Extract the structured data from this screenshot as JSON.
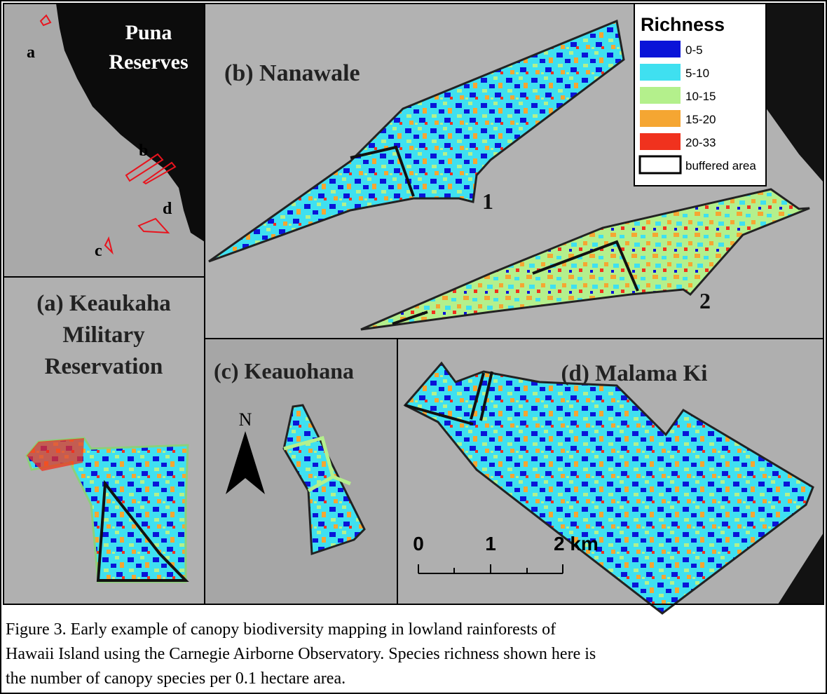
{
  "inset": {
    "title": [
      "Puna",
      "Reserves"
    ],
    "site_labels": [
      "a",
      "b",
      "c",
      "d"
    ]
  },
  "panel_b": {
    "title": "(b) Nanawale",
    "unit_labels": [
      "1",
      "2"
    ]
  },
  "panel_a": {
    "title": [
      "(a) Keaukaha",
      "Military",
      "Reservation"
    ]
  },
  "panel_c": {
    "title": "(c) Keauohana",
    "north": "N"
  },
  "panel_d": {
    "title": "(d) Malama Ki",
    "scale_labels": [
      "0",
      "1",
      "2 km"
    ]
  },
  "legend": {
    "title": "Richness",
    "items": [
      {
        "label": "0-5",
        "color": "#0a14d8"
      },
      {
        "label": "5-10",
        "color": "#3fe0f0"
      },
      {
        "label": "10-15",
        "color": "#b4f08c"
      },
      {
        "label": "15-20",
        "color": "#f5a632"
      },
      {
        "label": "20-33",
        "color": "#f0321e"
      },
      {
        "label": "buffered area",
        "color": "#ffffff"
      }
    ]
  },
  "caption": [
    "Figure 3. Early example of canopy biodiversity mapping in lowland rainforests of",
    "Hawaii Island using the Carnegie Airborne Observatory.  Species richness shown here is",
    "the number of canopy species per 0.1 hectare area."
  ]
}
